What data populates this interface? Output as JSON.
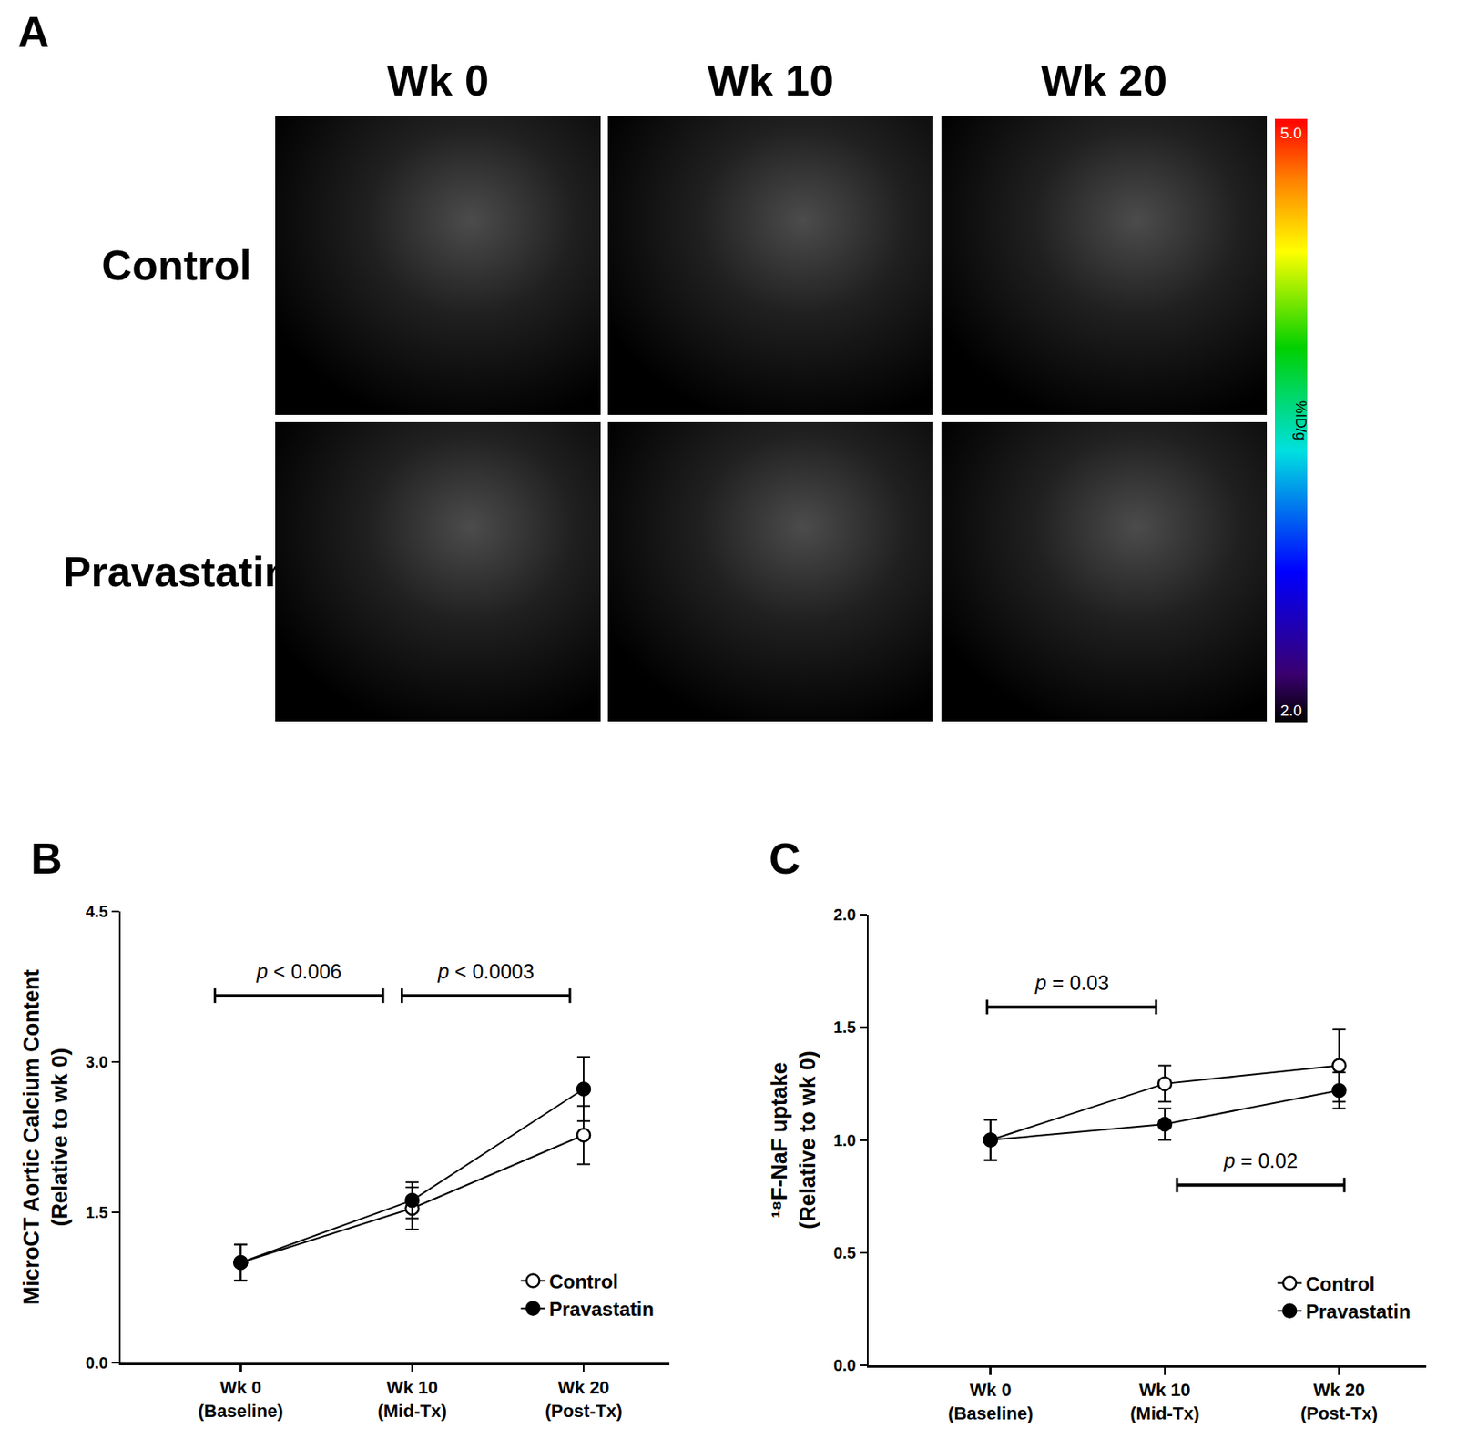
{
  "figure_a": {
    "label": "A",
    "columns": [
      "Wk 0",
      "Wk 10",
      "Wk 20"
    ],
    "rows": [
      "Control",
      "Pravastatin"
    ],
    "colorbar": {
      "label": "%ID/g",
      "range": [
        2,
        5
      ],
      "ticks": [
        {
          "value": 5,
          "label": "5.0"
        },
        {
          "value": 2,
          "label": "2.0"
        }
      ]
    }
  },
  "chart_data": [
    {
      "type": "line",
      "title": "B",
      "categories": [
        "Wk 0\n(Baseline)",
        "Wk 10\n(Mid-Tx)",
        "Wk 20\n(Post-Tx)"
      ],
      "y_label": "MicroCT Aortic Calcium Content\n(Relative to wk 0)",
      "ylim": [
        0,
        4.5
      ],
      "yticks": [
        {
          "value": 0,
          "label": "0.0"
        },
        {
          "value": 1.5,
          "label": "1.5"
        },
        {
          "value": 3,
          "label": "3.0"
        },
        {
          "value": 4.5,
          "label": "4.5"
        }
      ],
      "grid": false,
      "legend": "lower right",
      "series": [
        {
          "name": "Control",
          "color": "#000000",
          "marker": "open circle",
          "values": [
            1.0,
            1.54,
            2.27
          ],
          "errors": [
            0.18,
            0.21,
            0.29
          ]
        },
        {
          "name": "Pravastatin",
          "color": "#000000",
          "marker": "filled circle",
          "values": [
            1.0,
            1.62,
            2.73
          ],
          "errors": [
            0.18,
            0.18,
            0.32
          ]
        }
      ],
      "annotations": [
        {
          "text": "p < 0.006",
          "x": [
            -0.15,
            0.83
          ],
          "y": 3.66
        },
        {
          "text": "p < 0.0003",
          "x": [
            0.94,
            1.92
          ],
          "y": 3.66
        }
      ]
    },
    {
      "type": "line",
      "title": "C",
      "categories": [
        "Wk 0\n(Baseline)",
        "Wk 10\n(Mid-Tx)",
        "Wk 20\n(Post-Tx)"
      ],
      "y_label": "¹⁸F-NaF uptake\n(Relative to wk 0)",
      "ylim": [
        0,
        2.0
      ],
      "yticks": [
        {
          "value": 0,
          "label": "0.0"
        },
        {
          "value": 0.5,
          "label": "0.5"
        },
        {
          "value": 1,
          "label": "1.0"
        },
        {
          "value": 1.5,
          "label": "1.5"
        },
        {
          "value": 2,
          "label": "2.0"
        }
      ],
      "grid": false,
      "legend": "lower right",
      "series": [
        {
          "name": "Control",
          "color": "#000000",
          "marker": "open circle",
          "values": [
            1.0,
            1.25,
            1.33
          ],
          "errors": [
            0.09,
            0.08,
            0.16
          ]
        },
        {
          "name": "Pravastatin",
          "color": "#000000",
          "marker": "filled circle",
          "values": [
            1.0,
            1.07,
            1.22
          ],
          "errors": [
            0.09,
            0.07,
            0.08
          ]
        }
      ],
      "annotations": [
        {
          "text": "p = 0.03",
          "x": [
            -0.02,
            0.95
          ],
          "y": 1.59
        },
        {
          "text": "p = 0.02",
          "x": [
            1.07,
            2.03
          ],
          "y": 0.8
        }
      ]
    }
  ]
}
